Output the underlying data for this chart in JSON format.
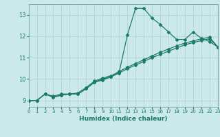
{
  "background_color": "#cce9e9",
  "grid_color": "#afd0d0",
  "line_color": "#1a7a6a",
  "xlabel": "Humidex (Indice chaleur)",
  "xlim": [
    0,
    23
  ],
  "ylim": [
    8.7,
    13.5
  ],
  "yticks": [
    9,
    10,
    11,
    12,
    13
  ],
  "xticks": [
    0,
    1,
    2,
    3,
    4,
    5,
    6,
    7,
    8,
    9,
    10,
    11,
    12,
    13,
    14,
    15,
    16,
    17,
    18,
    19,
    20,
    21,
    22,
    23
  ],
  "line1_x": [
    0,
    1,
    2,
    3,
    4,
    5,
    6,
    7,
    8,
    9,
    10,
    11,
    12,
    13,
    14,
    15,
    16,
    17,
    18,
    19,
    20,
    21,
    22,
    23
  ],
  "line1_y": [
    9.0,
    9.0,
    9.3,
    9.15,
    9.25,
    9.3,
    9.3,
    9.55,
    9.85,
    10.0,
    10.1,
    10.3,
    12.05,
    13.3,
    13.3,
    12.85,
    12.55,
    12.2,
    11.85,
    11.85,
    12.2,
    11.9,
    11.75,
    11.5
  ],
  "line2_x": [
    0,
    1,
    2,
    3,
    4,
    5,
    6,
    7,
    8,
    9,
    10,
    11,
    12,
    13,
    14,
    15,
    16,
    17,
    18,
    19,
    20,
    21,
    22,
    23
  ],
  "line2_y": [
    9.0,
    9.0,
    9.3,
    9.15,
    9.25,
    9.3,
    9.3,
    9.55,
    9.85,
    9.95,
    10.1,
    10.28,
    10.48,
    10.65,
    10.82,
    11.0,
    11.15,
    11.3,
    11.45,
    11.6,
    11.7,
    11.8,
    11.88,
    11.5
  ],
  "line3_x": [
    0,
    1,
    2,
    3,
    4,
    5,
    6,
    7,
    8,
    9,
    10,
    11,
    12,
    13,
    14,
    15,
    16,
    17,
    18,
    19,
    20,
    21,
    22,
    23
  ],
  "line3_y": [
    9.0,
    9.0,
    9.3,
    9.2,
    9.3,
    9.3,
    9.35,
    9.6,
    9.9,
    10.05,
    10.15,
    10.35,
    10.55,
    10.72,
    10.9,
    11.08,
    11.25,
    11.4,
    11.55,
    11.68,
    11.78,
    11.88,
    11.95,
    11.5
  ],
  "marker": "D",
  "markersize": 2.0,
  "linewidth": 0.9
}
